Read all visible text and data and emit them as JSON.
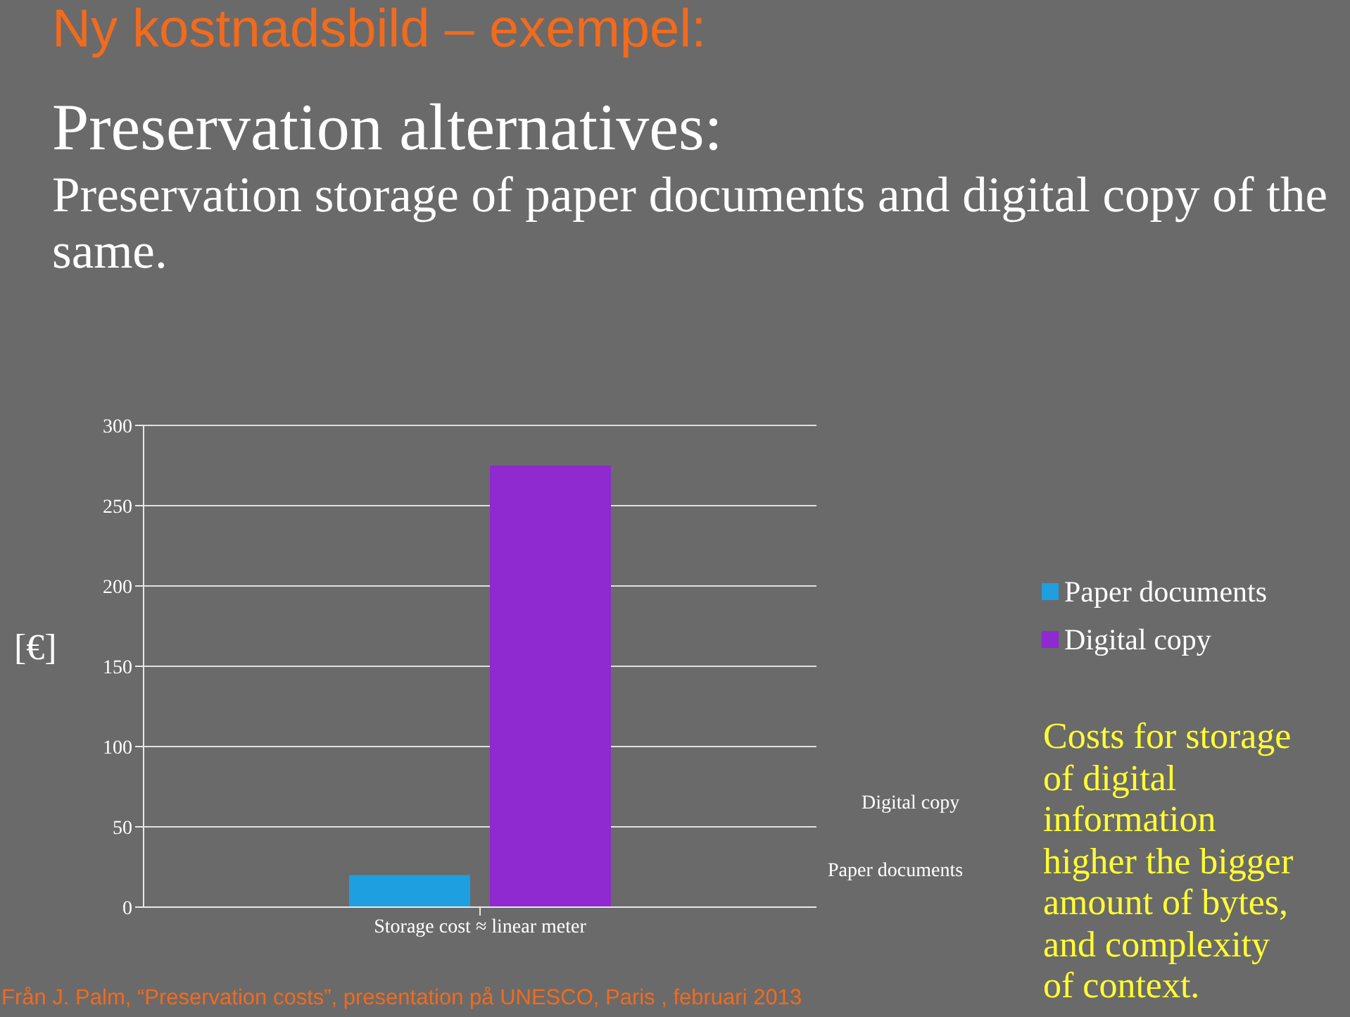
{
  "chart_data": {
    "type": "bar",
    "title": "Ny kostnadsbild – exempel:",
    "subtitle": "Preservation alternatives:",
    "ylabel": "[€]",
    "categories": [
      "Storage cost ≈ linear meter"
    ],
    "series": [
      {
        "name": "Paper documents",
        "color": "#1e9fe0",
        "values": [
          20
        ]
      },
      {
        "name": "Digital copy",
        "color": "#8e2ad0",
        "values": [
          275
        ]
      }
    ],
    "ylim": [
      0,
      300
    ],
    "yticks": [
      0,
      50,
      100,
      150,
      200,
      250,
      300
    ],
    "grid": "y",
    "legend": "right",
    "annotations": [
      "Preservation storage of paper documents and digital copy of the same.",
      "Costs for storage of digital information higher the bigger amount of bytes, and complexity of context.",
      "Från J. Palm, “Preservation costs”, presentation på UNESCO, Paris , februari 2013"
    ]
  }
}
